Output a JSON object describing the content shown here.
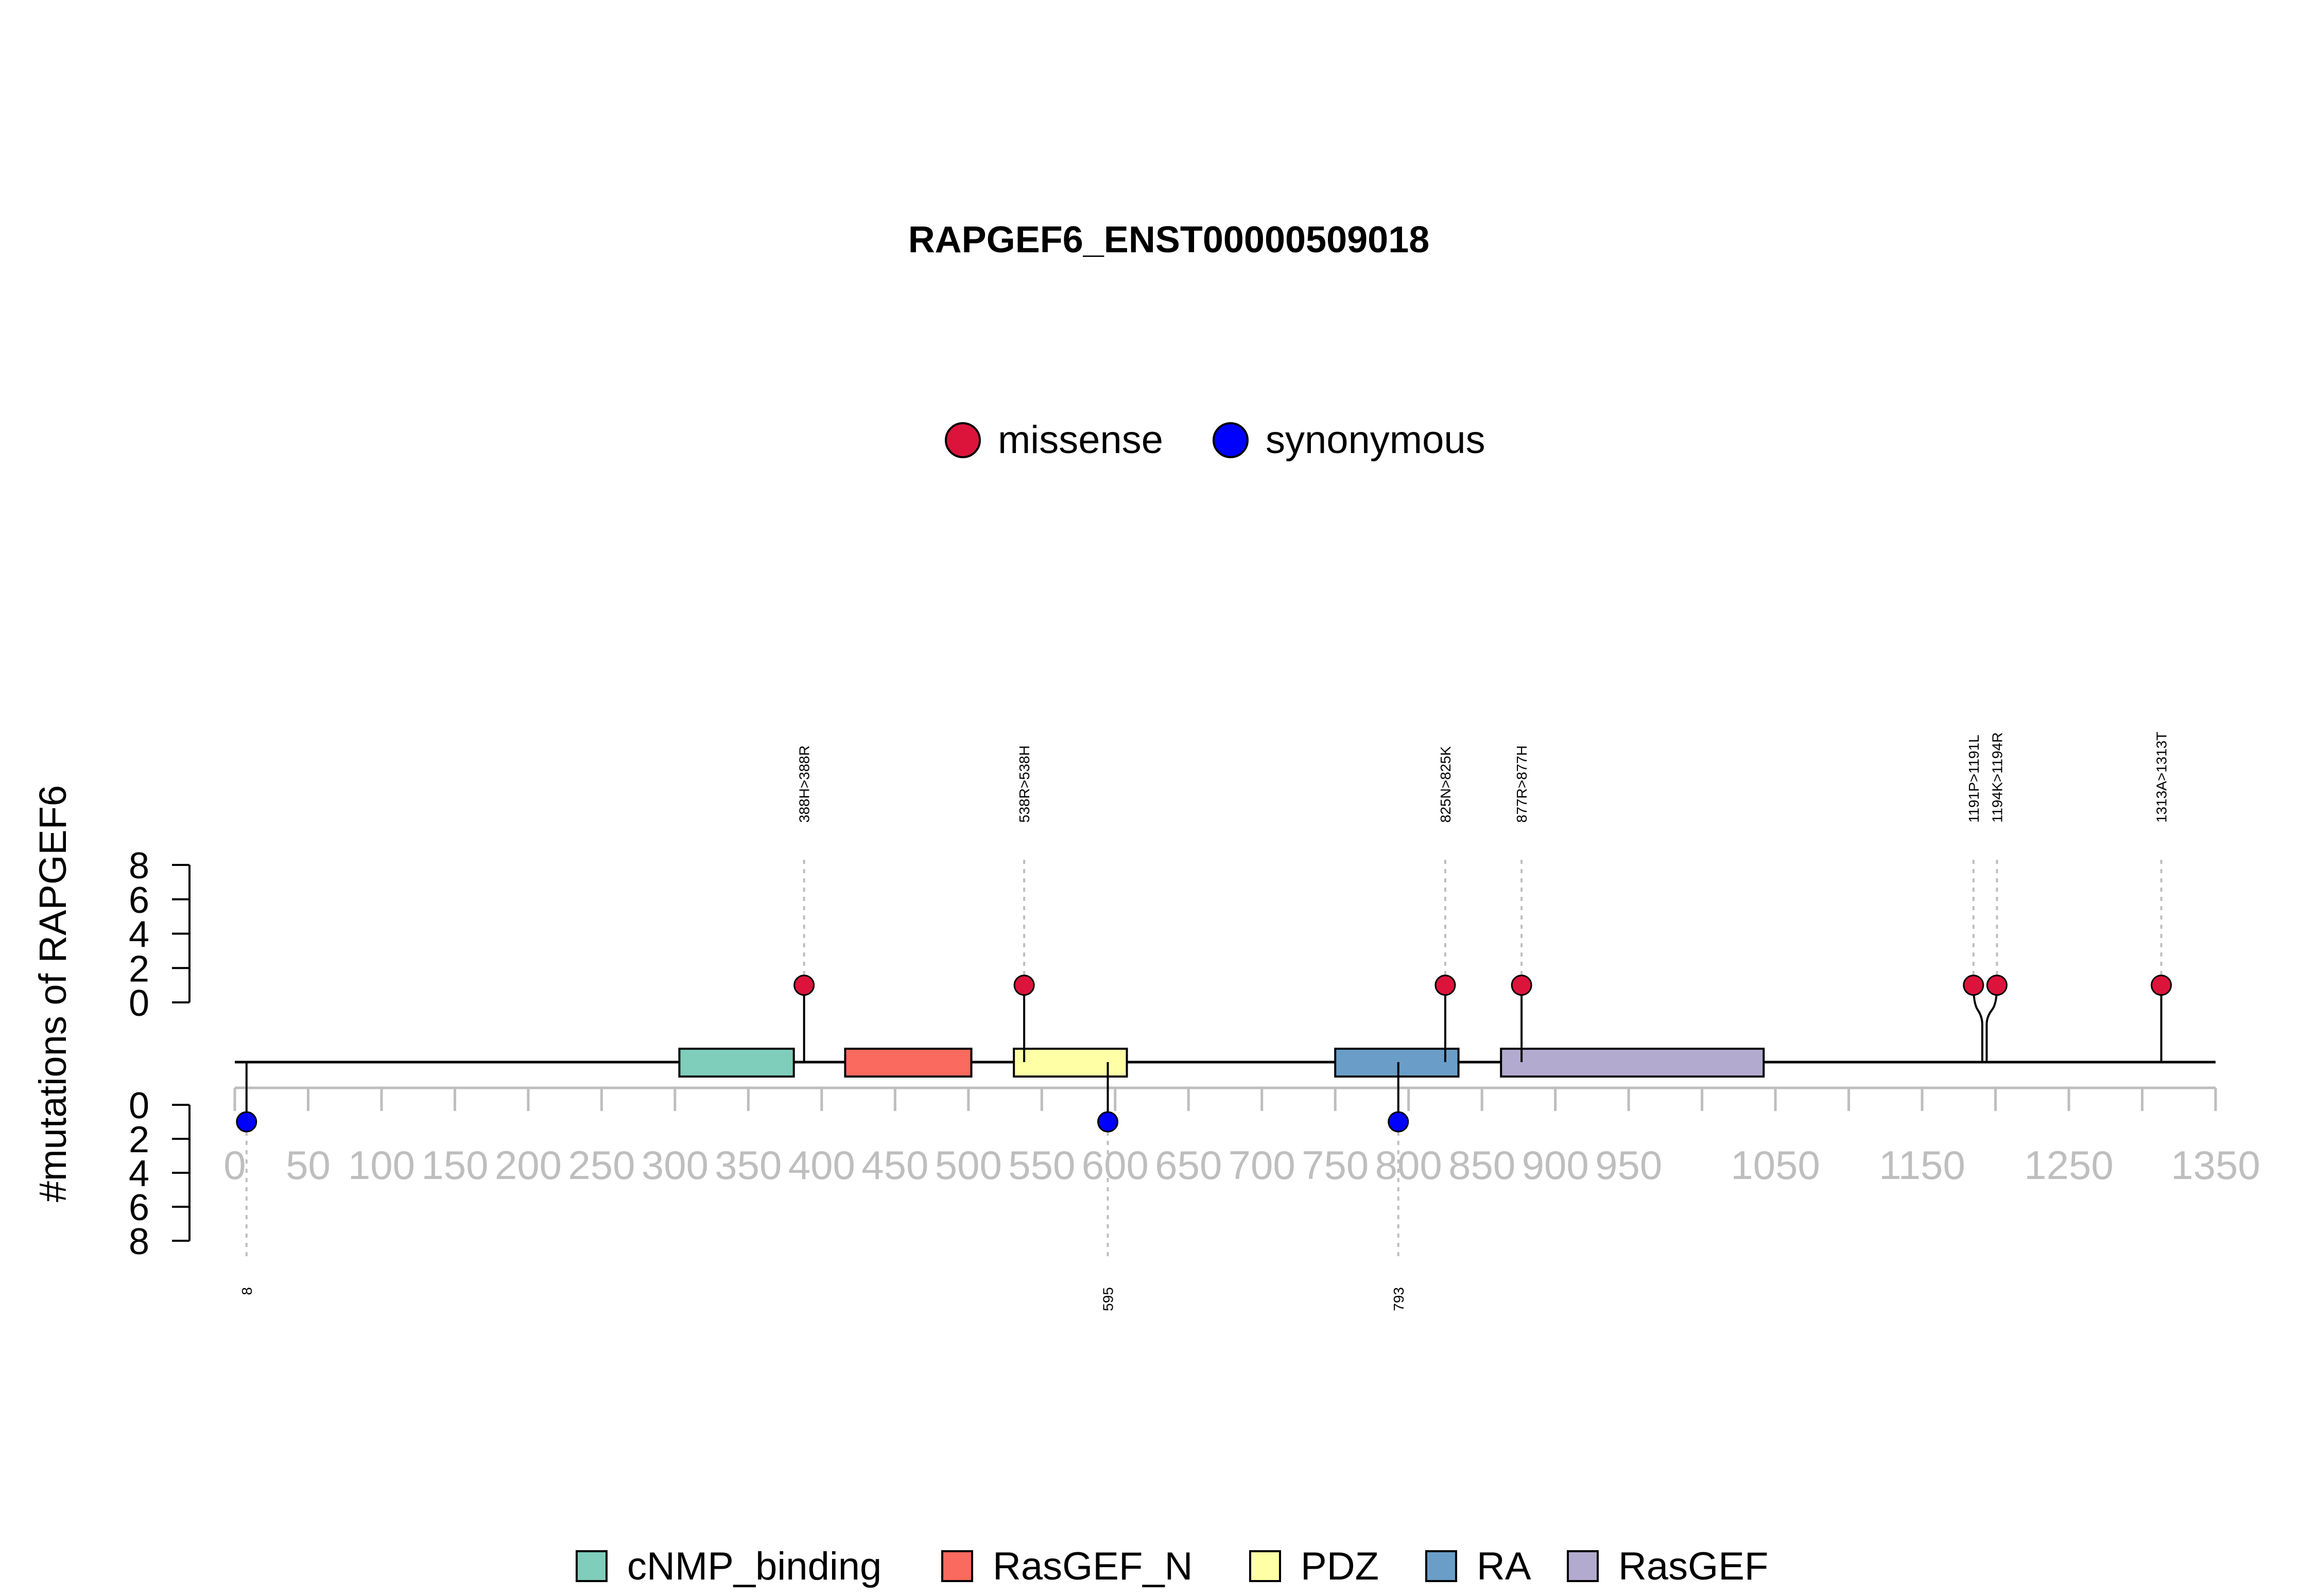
{
  "chart_data": {
    "type": "lollipop",
    "title": "RAPGEF6_ENST00000509018",
    "ylabel": "#mutations of RAPGEF6",
    "protein_length": 1350,
    "xlim": [
      0,
      1350
    ],
    "ylim_top": [
      0,
      8
    ],
    "ylim_bottom": [
      0,
      8
    ],
    "y_ticks": [
      "0",
      "2",
      "4",
      "6",
      "8"
    ],
    "x_ticks": [
      {
        "value": 0,
        "label": "0"
      },
      {
        "value": 50,
        "label": "50"
      },
      {
        "value": 100,
        "label": "100"
      },
      {
        "value": 150,
        "label": "150"
      },
      {
        "value": 200,
        "label": "200"
      },
      {
        "value": 250,
        "label": "250"
      },
      {
        "value": 300,
        "label": "300"
      },
      {
        "value": 350,
        "label": "350"
      },
      {
        "value": 400,
        "label": "400"
      },
      {
        "value": 450,
        "label": "450"
      },
      {
        "value": 500,
        "label": "500"
      },
      {
        "value": 550,
        "label": "550"
      },
      {
        "value": 600,
        "label": "600"
      },
      {
        "value": 650,
        "label": "650"
      },
      {
        "value": 700,
        "label": "700"
      },
      {
        "value": 750,
        "label": "750"
      },
      {
        "value": 800,
        "label": "800"
      },
      {
        "value": 850,
        "label": "850"
      },
      {
        "value": 900,
        "label": "900"
      },
      {
        "value": 950,
        "label": "950"
      },
      {
        "value": 1000,
        "label": ""
      },
      {
        "value": 1050,
        "label": "1050"
      },
      {
        "value": 1100,
        "label": ""
      },
      {
        "value": 1150,
        "label": "1150"
      },
      {
        "value": 1200,
        "label": ""
      },
      {
        "value": 1250,
        "label": "1250"
      },
      {
        "value": 1300,
        "label": ""
      },
      {
        "value": 1350,
        "label": "1350"
      }
    ],
    "legend_mutations": [
      {
        "name": "missense",
        "color": "#DC143C"
      },
      {
        "name": "synonymous",
        "color": "#0000FF"
      }
    ],
    "domains": [
      {
        "name": "cNMP_binding",
        "start": 303,
        "end": 381,
        "color": "#7FCDBB"
      },
      {
        "name": "RasGEF_N",
        "start": 416,
        "end": 502,
        "color": "#FB6A5E"
      },
      {
        "name": "PDZ",
        "start": 531,
        "end": 608,
        "color": "#FFFFA6"
      },
      {
        "name": "RA",
        "start": 750,
        "end": 834,
        "color": "#6A9EC8"
      },
      {
        "name": "RasGEF",
        "start": 863,
        "end": 1042,
        "color": "#B3AAD0"
      }
    ],
    "mutations_top": [
      {
        "pos": 388,
        "display_pos": 388,
        "label": "388H>388R",
        "type": "missense",
        "count": 1
      },
      {
        "pos": 538,
        "display_pos": 538,
        "label": "538R>538H",
        "type": "missense",
        "count": 1
      },
      {
        "pos": 825,
        "display_pos": 825,
        "label": "825N>825K",
        "type": "missense",
        "count": 1
      },
      {
        "pos": 877,
        "display_pos": 877,
        "label": "877R>877H",
        "type": "missense",
        "count": 1
      },
      {
        "pos": 1191,
        "display_pos": 1185,
        "label": "1191P>1191L",
        "type": "missense",
        "count": 1
      },
      {
        "pos": 1194,
        "display_pos": 1201,
        "label": "1194K>1194R",
        "type": "missense",
        "count": 1
      },
      {
        "pos": 1313,
        "display_pos": 1313,
        "label": "1313A>1313T",
        "type": "missense",
        "count": 1
      }
    ],
    "mutations_bottom": [
      {
        "pos": 8,
        "label": "8",
        "type": "synonymous",
        "count": 1
      },
      {
        "pos": 595,
        "label": "595",
        "type": "synonymous",
        "count": 1
      },
      {
        "pos": 793,
        "label": "793",
        "type": "synonymous",
        "count": 1
      }
    ]
  }
}
